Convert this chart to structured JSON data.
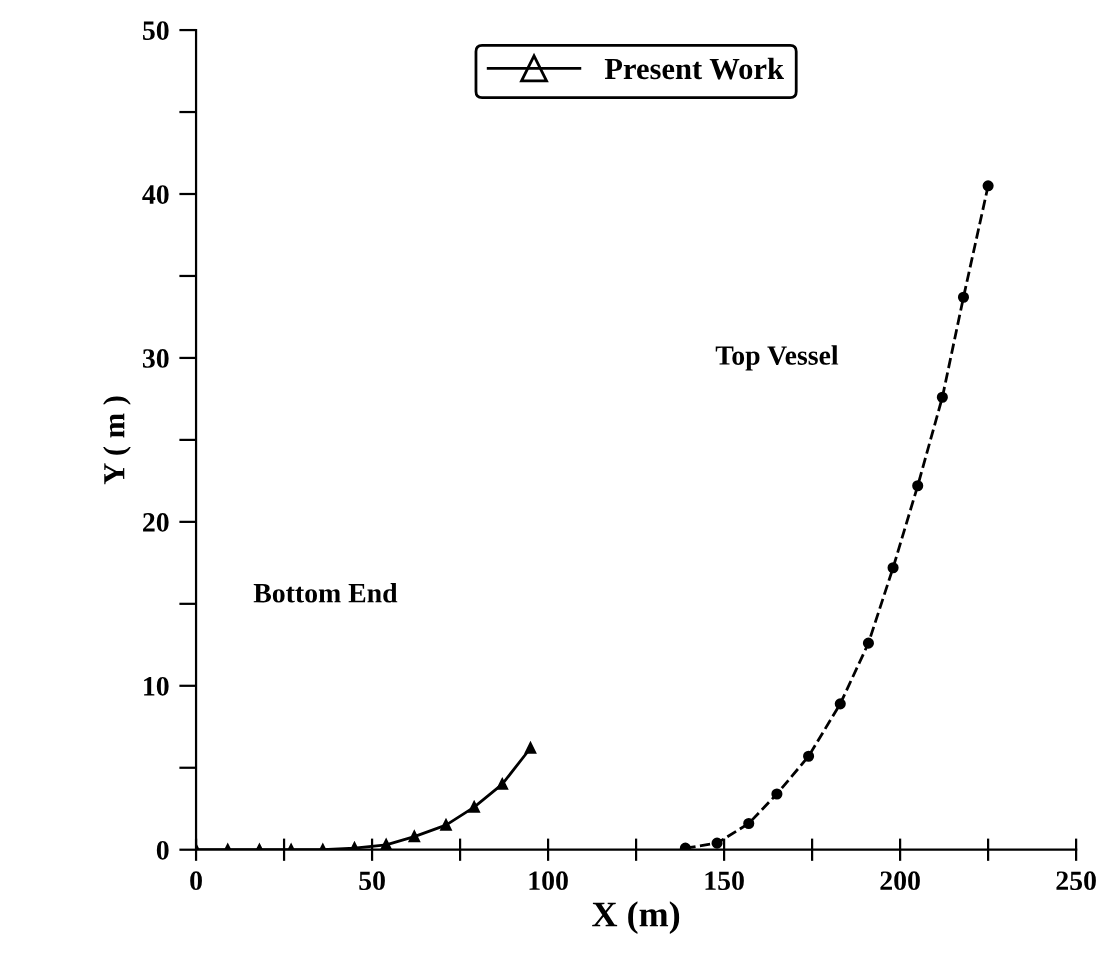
{
  "chart_data": {
    "type": "line",
    "xlabel": "X (m)",
    "ylabel": "Y ( m )",
    "xlim": [
      0,
      250
    ],
    "ylim": [
      0,
      50
    ],
    "xticks": [
      0,
      {
        "value": 25,
        "label": null
      },
      50,
      {
        "value": 75,
        "label": null
      },
      100,
      {
        "value": 125,
        "label": null
      },
      150,
      {
        "value": 175,
        "label": null
      },
      200,
      {
        "value": 225,
        "label": null
      },
      250
    ],
    "yticks": [
      0,
      {
        "value": 5,
        "label": null
      },
      10,
      {
        "value": 15,
        "label": null
      },
      20,
      {
        "value": 25,
        "label": null
      },
      30,
      {
        "value": 35,
        "label": null
      },
      40,
      {
        "value": 45,
        "label": null
      },
      50
    ],
    "grid": false,
    "legend": "top",
    "series": [
      {
        "name": "Present Work",
        "color": "#000000",
        "marker": "triangle",
        "line_style": "solid",
        "x": [
          0,
          9,
          18,
          27,
          36,
          45,
          54,
          62,
          71,
          79,
          87,
          95
        ],
        "values": [
          0,
          0,
          0,
          0,
          0,
          0.1,
          0.3,
          0.8,
          1.5,
          2.6,
          4.0,
          6.2
        ]
      },
      {
        "color": "#000000",
        "marker": "circle",
        "line_style": "dashed",
        "x": [
          139,
          148,
          157,
          165,
          174,
          183,
          191,
          198,
          205,
          212,
          218,
          225
        ],
        "values": [
          0.1,
          0.4,
          1.6,
          3.4,
          5.7,
          8.9,
          12.6,
          17.2,
          22.2,
          27.6,
          33.7,
          40.5
        ]
      }
    ],
    "annotations": [
      "Top Vessel",
      "Bottom End"
    ]
  }
}
